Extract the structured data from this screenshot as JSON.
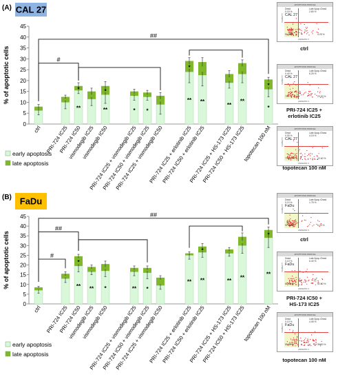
{
  "panels": [
    {
      "letter": "(A)",
      "cell_line": "CAL 27",
      "badge_color": "#8eb4e3",
      "chart_data": {
        "type": "bar",
        "stacked": true,
        "ylabel": "% of apoptotic cells",
        "ylim": [
          0,
          45
        ],
        "yticks": [
          0,
          5,
          10,
          15,
          20,
          25,
          30,
          35,
          40,
          45
        ],
        "categories": [
          "ctrl",
          "PRI-724 IC25",
          "PRI-724 IC50",
          "vismodegib IC25",
          "vismodegib IC50",
          "PRI-724 IC25 + vismodegib IC25",
          "PRI-724 IC50 + vismodegib IC25",
          "PRI-724 IC25 + vismodegib IC50",
          "PRI-724 IC25 + erlotinib IC25",
          "PRI-724 IC50 + erlotinib IC25",
          "PRI-724 IC25 + HS-173 IC25",
          "PRI-724 IC50 + HS-173 IC25",
          "topotecan 100 nM"
        ],
        "series": [
          {
            "name": "early apoptosis",
            "color": "#d9f7d9",
            "values": [
              6.2,
              10.0,
              15.5,
              11.5,
              13.5,
              13.0,
              12.5,
              9.0,
              24.0,
              22.5,
              19.0,
              23.0,
              16.0
            ]
          },
          {
            "name": "late apoptosis",
            "color": "#7fb82a",
            "values": [
              1.8,
              2.5,
              2.0,
              3.5,
              4.0,
              2.0,
              2.0,
              4.0,
              5.0,
              6.0,
              4.0,
              5.0,
              4.5
            ]
          }
        ],
        "early_error": [
          2.0,
          3.0,
          1.5,
          3.0,
          4.0,
          2.0,
          1.5,
          4.5,
          5.0,
          5.0,
          2.5,
          4.0,
          3.5
        ],
        "total_error": [
          1.0,
          0.8,
          1.5,
          1.5,
          2.0,
          1.0,
          1.0,
          1.5,
          1.5,
          2.0,
          1.5,
          1.5,
          1.0
        ],
        "early_marks": [
          "",
          "",
          "**",
          "",
          "**",
          "*",
          "*",
          "",
          "**",
          "**",
          "**",
          "**",
          "*"
        ],
        "late_marks": [
          "",
          "",
          "*",
          "",
          "*",
          "",
          "",
          "",
          "*",
          "",
          "",
          "",
          "*"
        ],
        "brackets": [
          {
            "from": 0,
            "to": 12,
            "level": 39,
            "label": "##"
          },
          {
            "from": 0,
            "to": 2,
            "level": 28,
            "label": "#"
          },
          {
            "from": 2,
            "to": 7,
            "level": 26,
            "label": ""
          },
          {
            "from": 8,
            "to": 11,
            "level": 34,
            "label": ""
          }
        ]
      },
      "legend": [
        "early apoptosis",
        "late apoptosis"
      ],
      "flows": [
        {
          "caption": "ctrl",
          "line": "CAL 27",
          "dead": "Dead\n0.15 %",
          "late": "Late Apop./Dead\n2.80 %",
          "live": "92.80 %",
          "early": "4.25 %"
        },
        {
          "caption": "PRI-724 IC25 +\nerlotinib IC25",
          "line": "CAL 27",
          "dead": "Dead\n0.40 %",
          "late": "Late Apop./Dead\n6.25 %",
          "live": "70.1 %",
          "early": "23.30 %"
        },
        {
          "caption": "topotecan 100 nM",
          "line": "CAL 27",
          "dead": "Dead\n0.30 %",
          "late": "Late Apop./Dead\n4.15 %",
          "live": "73.10 %",
          "early": "22.60 %"
        }
      ]
    },
    {
      "letter": "(B)",
      "cell_line": "FaDu",
      "badge_color": "#ffc000",
      "chart_data": {
        "type": "bar",
        "stacked": true,
        "ylabel": "% of apoptotic cells",
        "ylim": [
          0,
          45
        ],
        "yticks": [
          0,
          5,
          10,
          15,
          20,
          25,
          30,
          35,
          40,
          45
        ],
        "categories": [
          "ctrl",
          "PRI-724 IC25",
          "PRI-724 IC50",
          "vismodegib IC25",
          "vismodegib IC50",
          "PRI-724 IC25 + vismodegib IC25",
          "PRI-724 IC50 + vismodegib IC25",
          "PRI-724 IC25 + vismodegib IC50",
          "PRI-724 IC25 + erlotinib IC25",
          "PRI-724 IC50 + erlotinib IC25",
          "PRI-724 IC25 + HS-173 IC25",
          "PRI-724 IC50 + HS-173 IC25",
          "topotecan 100 nM"
        ],
        "series": [
          {
            "name": "early apoptosis",
            "color": "#d9f7d9",
            "values": [
              7.0,
              13.0,
              19.5,
              16.5,
              17.0,
              16.5,
              16.0,
              9.5,
              25.0,
              26.5,
              26.0,
              30.0,
              34.0
            ]
          },
          {
            "name": "late apoptosis",
            "color": "#7fb82a",
            "values": [
              1.5,
              2.5,
              5.0,
              2.5,
              3.5,
              2.0,
              2.5,
              4.0,
              1.0,
              3.0,
              2.0,
              4.5,
              4.0
            ]
          }
        ],
        "early_error": [
          1.5,
          2.0,
          3.0,
          1.5,
          3.0,
          2.0,
          3.0,
          2.0,
          2.0,
          2.5,
          1.5,
          4.0,
          5.0
        ],
        "total_error": [
          0.5,
          1.0,
          1.0,
          1.0,
          1.5,
          1.0,
          1.0,
          1.0,
          0.8,
          1.5,
          1.0,
          2.0,
          1.5
        ],
        "early_marks": [
          "",
          "",
          "**",
          "**",
          "*",
          "**",
          "*",
          "",
          "**",
          "**",
          "**",
          "**",
          "**"
        ],
        "late_marks": [
          "",
          "",
          "*",
          "",
          "",
          "",
          "",
          "",
          "",
          "*",
          "",
          "",
          "*"
        ],
        "brackets": [
          {
            "from": 0,
            "to": 12,
            "level": 44,
            "label": "##"
          },
          {
            "from": 0,
            "to": 2,
            "level": 37,
            "label": "##"
          },
          {
            "from": 0,
            "to": 1,
            "level": 23,
            "label": "#"
          },
          {
            "from": 2,
            "to": 6,
            "level": 33,
            "label": ""
          },
          {
            "from": 8,
            "to": 11,
            "level": 40,
            "label": ""
          }
        ]
      },
      "legend": [
        "early apoptosis",
        "late apoptosis"
      ],
      "flows": [
        {
          "caption": "ctrl",
          "line": "FaDu",
          "dead": "Dead\n0.10 %",
          "late": "Late Apop./Dead\n1.75 %",
          "live": "91.95 %",
          "early": "6.20 %"
        },
        {
          "caption": "PRI-724 IC50 +\nHS-173 IC25",
          "line": "FaDu",
          "dead": "Dead\n0.10 %",
          "late": "Late Apop./Dead\n6.40 %",
          "live": "61.55 %",
          "early": "32.00 %"
        },
        {
          "caption": "topotecan 100 nM",
          "line": "FaDu",
          "dead": "Dead\n0.10 %",
          "late": "Late Apop./Dead\n4.05 %",
          "live": "59.85 %",
          "early": "36.00 %"
        }
      ]
    }
  ]
}
